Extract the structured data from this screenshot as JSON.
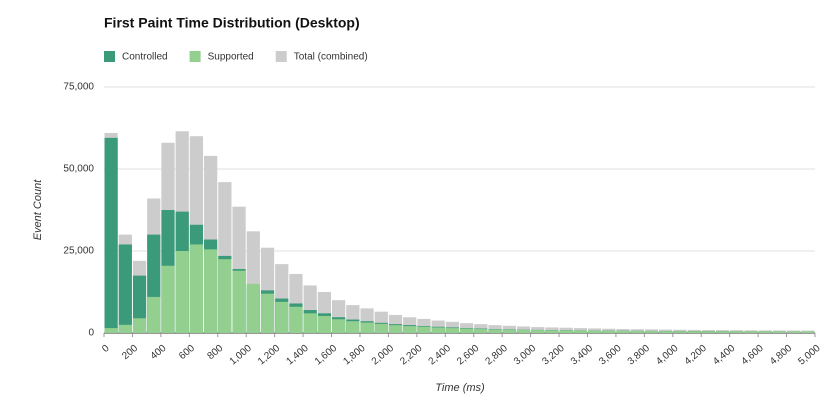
{
  "chart_data": {
    "type": "histogram",
    "title": "First Paint Time Distribution (Desktop)",
    "x_label": "Time (ms)",
    "y_label": "Event Count",
    "grid": true,
    "bins": [
      0,
      100,
      200,
      300,
      400,
      500,
      600,
      700,
      800,
      900,
      1000,
      1100,
      1200,
      1300,
      1400,
      1500,
      1600,
      1700,
      1800,
      1900,
      2000,
      2100,
      2200,
      2300,
      2400,
      2500,
      2600,
      2700,
      2800,
      2900,
      3000,
      3100,
      3200,
      3300,
      3400,
      3500,
      3600,
      3700,
      3800,
      3900,
      4000,
      4100,
      4200,
      4300,
      4400,
      4500,
      4600,
      4700,
      4800,
      4900,
      5000
    ],
    "series": [
      {
        "name": "Total (combined)",
        "color": "#cccccc",
        "values": [
          61000,
          30000,
          22000,
          41000,
          58000,
          61500,
          60000,
          54000,
          46000,
          38500,
          31000,
          26000,
          21000,
          18000,
          14500,
          12500,
          10000,
          8500,
          7500,
          6500,
          5500,
          4800,
          4300,
          3800,
          3400,
          3000,
          2700,
          2400,
          2200,
          2000,
          1800,
          1700,
          1600,
          1500,
          1400,
          1300,
          1200,
          1150,
          1100,
          1050,
          1000,
          950,
          900,
          880,
          850,
          820,
          800,
          780,
          760,
          740
        ]
      },
      {
        "name": "Controlled",
        "color": "#3a9a79",
        "values": [
          59500,
          27000,
          17500,
          30000,
          37500,
          37000,
          33000,
          28500,
          23500,
          19500,
          14000,
          13000,
          10500,
          9000,
          7000,
          6000,
          4800,
          4100,
          3600,
          3100,
          2700,
          2400,
          2100,
          1900,
          1700,
          1500,
          1350,
          1200,
          1100,
          1000,
          950,
          900,
          850,
          800,
          760,
          720,
          690,
          660,
          640,
          620,
          600,
          580,
          560,
          540,
          520,
          510,
          500,
          490,
          480,
          470
        ]
      },
      {
        "name": "Supported",
        "color": "#93cf8e",
        "values": [
          1500,
          2500,
          4500,
          11000,
          20500,
          25000,
          27000,
          25500,
          22500,
          19000,
          15000,
          12000,
          9500,
          8000,
          6000,
          5200,
          4200,
          3600,
          3200,
          2800,
          2400,
          2100,
          1900,
          1700,
          1500,
          1350,
          1200,
          1100,
          1000,
          950,
          900,
          850,
          800,
          760,
          720,
          690,
          660,
          630,
          600,
          580,
          560,
          540,
          520,
          500,
          490,
          480,
          470,
          460,
          450,
          440
        ]
      }
    ],
    "legend_order": [
      1,
      2,
      0
    ],
    "xlim": [
      0,
      5000
    ],
    "xticks": [
      0,
      200,
      400,
      600,
      800,
      {
        "value": 1000,
        "label": "1,000"
      },
      {
        "value": 1200,
        "label": "1,200"
      },
      {
        "value": 1400,
        "label": "1,400"
      },
      {
        "value": 1600,
        "label": "1,600"
      },
      {
        "value": 1800,
        "label": "1,800"
      },
      {
        "value": 2000,
        "label": "2,000"
      },
      {
        "value": 2200,
        "label": "2,200"
      },
      {
        "value": 2400,
        "label": "2,400"
      },
      {
        "value": 2600,
        "label": "2,600"
      },
      {
        "value": 2800,
        "label": "2,800"
      },
      {
        "value": 3000,
        "label": "3,000"
      },
      {
        "value": 3200,
        "label": "3,200"
      },
      {
        "value": 3400,
        "label": "3,400"
      },
      {
        "value": 3600,
        "label": "3,600"
      },
      {
        "value": 3800,
        "label": "3,800"
      },
      {
        "value": 4000,
        "label": "4,000"
      },
      {
        "value": 4200,
        "label": "4,200"
      },
      {
        "value": 4400,
        "label": "4,400"
      },
      {
        "value": 4600,
        "label": "4,600"
      },
      {
        "value": 4800,
        "label": "4,800"
      },
      {
        "value": 5000,
        "label": "5,000"
      }
    ],
    "ylim": [
      0,
      75000
    ],
    "yticks": [
      0,
      {
        "value": 25000,
        "label": "25,000"
      },
      {
        "value": 50000,
        "label": "50,000"
      },
      {
        "value": 75000,
        "label": "75,000"
      }
    ]
  }
}
